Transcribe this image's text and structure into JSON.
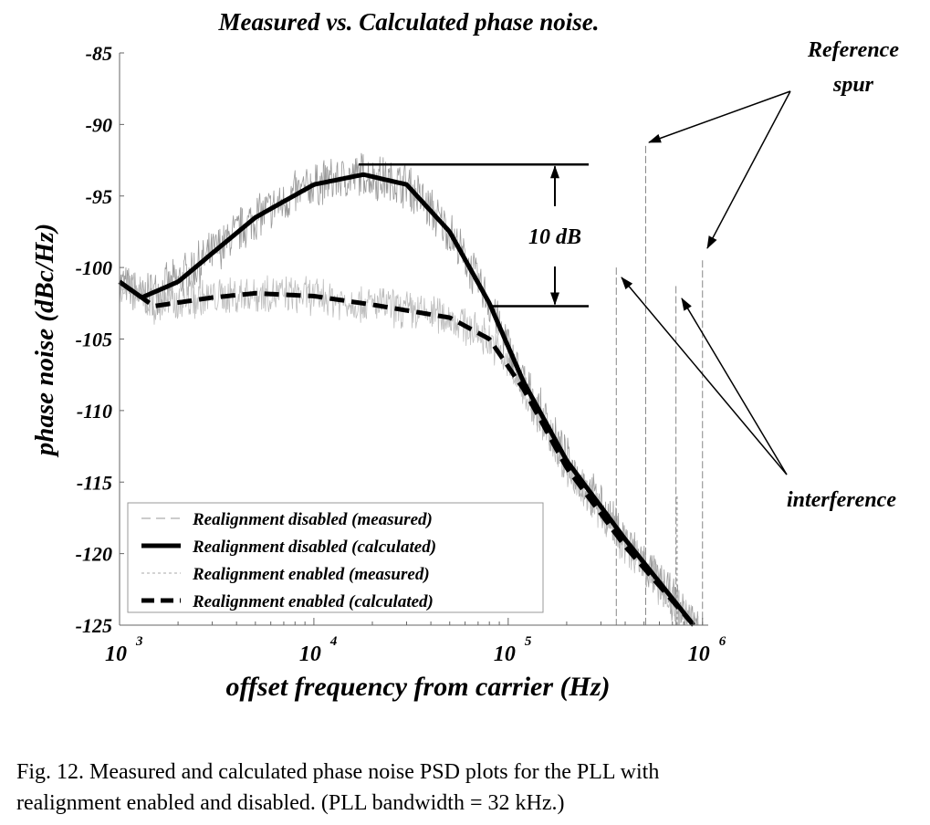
{
  "chart_data": {
    "type": "line",
    "title": "Measured vs. Calculated phase noise.",
    "xlabel": "offset frequency from carrier (Hz)",
    "ylabel": "phase noise (dBc/Hz)",
    "xscale": "log",
    "xlim": [
      1000,
      1070000
    ],
    "ylim": [
      -125,
      -85
    ],
    "x_ticks": [
      {
        "base": "10",
        "exp": "3",
        "value": 1000
      },
      {
        "base": "10",
        "exp": "4",
        "value": 10000
      },
      {
        "base": "10",
        "exp": "5",
        "value": 100000
      },
      {
        "base": "10",
        "exp": "6",
        "value": 1000000
      }
    ],
    "y_ticks": [
      "-85",
      "-90",
      "-95",
      "-100",
      "-105",
      "-110",
      "-115",
      "-120",
      "-125"
    ],
    "grid": false,
    "legend_position": "bottom-left",
    "series": [
      {
        "name": "Realignment disabled (measured)",
        "style": "thin-dash-gray",
        "base": "Realignment disabled (calculated)",
        "noise_db": 1.2,
        "spurs": [
          {
            "x": 360000,
            "y": -100
          },
          {
            "x": 510000,
            "y": -91.5
          },
          {
            "x": 730000,
            "y": -101.3
          },
          {
            "x": 1000000,
            "y": -99.5
          }
        ]
      },
      {
        "name": "Realignment disabled (calculated)",
        "style": "thick-solid",
        "x": [
          1000,
          1300,
          2000,
          3000,
          5000,
          10000,
          18000,
          30000,
          50000,
          80000,
          120000,
          200000,
          400000,
          900000
        ],
        "y": [
          -101,
          -102.1,
          -101,
          -99,
          -96.5,
          -94.2,
          -93.5,
          -94.2,
          -97.5,
          -102.5,
          -108,
          -113.5,
          -119,
          -125
        ]
      },
      {
        "name": "Realignment enabled (measured)",
        "style": "thin-dot-gray",
        "base": "Realignment enabled (calculated)",
        "noise_db": 1.0,
        "spurs": [
          {
            "x": 740000,
            "y": -116
          }
        ]
      },
      {
        "name": "Realignment enabled (calculated)",
        "style": "thick-dash",
        "x": [
          1000,
          1500,
          3000,
          5000,
          10000,
          20000,
          50000,
          80000,
          120000,
          200000,
          400000,
          900000
        ],
        "y": [
          -101,
          -102.7,
          -102.1,
          -101.8,
          -102,
          -102.6,
          -103.5,
          -105,
          -108.5,
          -114,
          -119.5,
          -125
        ]
      }
    ],
    "annotations": {
      "delta_label": "10 dB",
      "delta_upper_y": -92.8,
      "delta_lower_y": -102.7,
      "reference_spur_lines": [
        "Reference",
        "spur"
      ],
      "interference_label": "interference"
    }
  },
  "caption": {
    "line1": "Fig. 12.   Measured and calculated phase noise PSD plots for the PLL with",
    "line2": "realignment enabled and disabled. (PLL bandwidth = 32 kHz.)"
  }
}
